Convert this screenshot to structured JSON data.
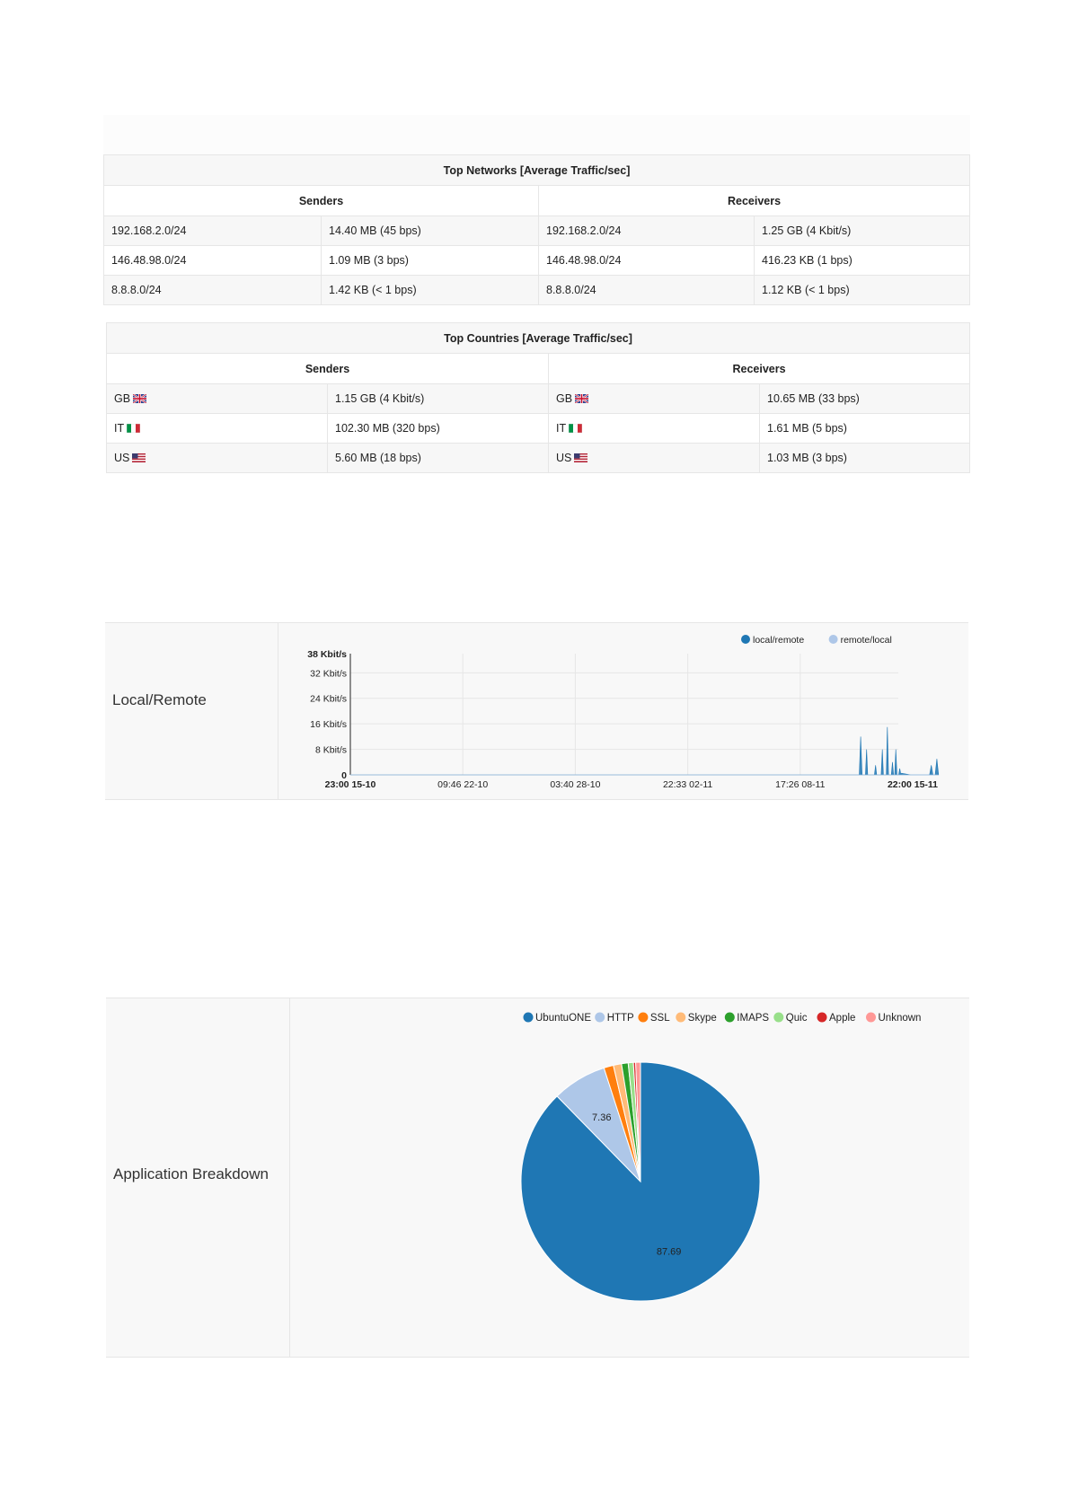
{
  "top_networks": {
    "title": "Top Networks [Average Traffic/sec]",
    "senders_header": "Senders",
    "receivers_header": "Receivers",
    "rows": [
      {
        "sender": "192.168.2.0/24",
        "sender_value": "14.40 MB (45 bps)",
        "receiver": "192.168.2.0/24",
        "receiver_value": "1.25 GB (4 Kbit/s)"
      },
      {
        "sender": "146.48.98.0/24",
        "sender_value": "1.09 MB (3 bps)",
        "receiver": "146.48.98.0/24",
        "receiver_value": "416.23 KB (1 bps)"
      },
      {
        "sender": "8.8.8.0/24",
        "sender_value": "1.42 KB (< 1 bps)",
        "receiver": "8.8.8.0/24",
        "receiver_value": "1.12 KB (< 1 bps)"
      }
    ]
  },
  "top_countries": {
    "title": "Top Countries [Average Traffic/sec]",
    "senders_header": "Senders",
    "receivers_header": "Receivers",
    "rows": [
      {
        "sender": "GB",
        "sender_flag": "gb-flag-icon",
        "sender_value": "1.15 GB (4 Kbit/s)",
        "receiver": "GB",
        "receiver_flag": "gb-flag-icon",
        "receiver_value": "10.65 MB (33 bps)"
      },
      {
        "sender": "IT",
        "sender_flag": "it-flag-icon",
        "sender_value": "102.30 MB (320 bps)",
        "receiver": "IT",
        "receiver_flag": "it-flag-icon",
        "receiver_value": "1.61 MB (5 bps)"
      },
      {
        "sender": "US",
        "sender_flag": "us-flag-icon",
        "sender_value": "5.60 MB (18 bps)",
        "receiver": "US",
        "receiver_flag": "us-flag-icon",
        "receiver_value": "1.03 MB (3 bps)"
      }
    ]
  },
  "local_remote": {
    "label": "Local/Remote"
  },
  "application_breakdown": {
    "label": "Application Breakdown"
  },
  "chart_data": [
    {
      "type": "area",
      "title": "",
      "xlabel": "",
      "ylabel": "",
      "legend_position": "top-right",
      "grid": true,
      "ylim": [
        0,
        38
      ],
      "y_unit": "Kbit/s",
      "y_ticks": [
        "38 Kbit/s",
        "32 Kbit/s",
        "24 Kbit/s",
        "16 Kbit/s",
        "8 Kbit/s",
        "0"
      ],
      "y_tick_values": [
        38,
        32,
        24,
        16,
        8,
        0
      ],
      "x_ticks": [
        "23:00 15-10",
        "09:46 22-10",
        "03:40 28-10",
        "22:33 02-11",
        "17:26 08-11",
        "22:00 15-11"
      ],
      "x_tick_bold": [
        true,
        false,
        false,
        false,
        false,
        true
      ],
      "series": [
        {
          "name": "local/remote",
          "color": "#1f77b4",
          "points": [
            [
              0,
              0
            ],
            [
              0.905,
              0
            ],
            [
              0.9075,
              12
            ],
            [
              0.91,
              0
            ],
            [
              0.916,
              0
            ],
            [
              0.918,
              8
            ],
            [
              0.92,
              0
            ],
            [
              0.932,
              0
            ],
            [
              0.934,
              3
            ],
            [
              0.936,
              0
            ],
            [
              0.944,
              0
            ],
            [
              0.946,
              8
            ],
            [
              0.948,
              0
            ],
            [
              0.953,
              0
            ],
            [
              0.955,
              15
            ],
            [
              0.957,
              0
            ],
            [
              0.962,
              0
            ],
            [
              0.964,
              4
            ],
            [
              0.966,
              0
            ],
            [
              0.968,
              0
            ],
            [
              0.97,
              8
            ],
            [
              0.972,
              0
            ],
            [
              0.975,
              0
            ],
            [
              0.977,
              2
            ],
            [
              0.979,
              0
            ],
            [
              0.98,
              0.5
            ],
            [
              0.99,
              0.2
            ],
            [
              0.996,
              0
            ],
            [
              1.03,
              0
            ],
            [
              1.033,
              3
            ],
            [
              1.036,
              0
            ],
            [
              1.04,
              0
            ],
            [
              1.043,
              5
            ],
            [
              1.046,
              0
            ]
          ]
        },
        {
          "name": "remote/local",
          "color": "#aec7e8",
          "points": [
            [
              0,
              0
            ],
            [
              1.046,
              0
            ]
          ]
        }
      ]
    },
    {
      "type": "pie",
      "title": "",
      "legend_position": "top-right",
      "categories": [
        "UbuntuONE",
        "HTTP",
        "SSL",
        "Skype",
        "IMAPS",
        "Quic",
        "Apple",
        "Unknown"
      ],
      "colors": [
        "#1f77b4",
        "#aec7e8",
        "#ff7f0e",
        "#ffbb78",
        "#2ca02c",
        "#98df8a",
        "#d62728",
        "#ff9896"
      ],
      "values": [
        87.69,
        7.36,
        1.3,
        1.1,
        0.9,
        0.7,
        0.3,
        0.65
      ],
      "labels_shown": [
        "87.69",
        "7.36",
        "",
        "",
        "",
        "",
        "",
        ""
      ]
    }
  ]
}
